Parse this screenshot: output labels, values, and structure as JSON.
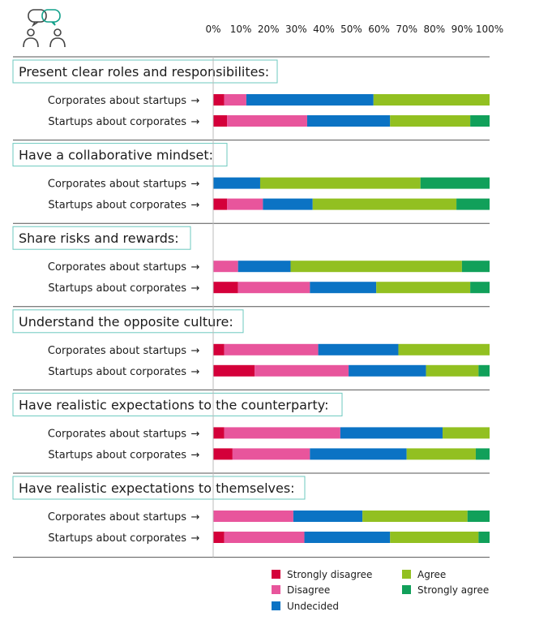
{
  "chart_data": {
    "type": "bar",
    "orientation": "horizontal",
    "stacked": true,
    "xlim": [
      0,
      100
    ],
    "x_ticks": [
      "0%",
      "10%",
      "20%",
      "30%",
      "40%",
      "50%",
      "60%",
      "70%",
      "80%",
      "90%",
      "100%"
    ],
    "series": [
      {
        "name": "Strongly disagree",
        "color": "#d4003a"
      },
      {
        "name": "Disagree",
        "color": "#e8559c"
      },
      {
        "name": "Undecided",
        "color": "#0b73c4"
      },
      {
        "name": "Agree",
        "color": "#92c021"
      },
      {
        "name": "Strongly agree",
        "color": "#11a05a"
      }
    ],
    "row_arrow_colors": {
      "corporates": "#0b73c4",
      "startups": "#92c021"
    },
    "sections": [
      {
        "title": "Present clear roles and responsibilites:",
        "rows": [
          {
            "label": "Corporates about startups",
            "arrow": "→",
            "group": "corporates",
            "values": [
              4,
              8,
              46,
              42,
              0
            ]
          },
          {
            "label": "Startups about corporates",
            "arrow": "→",
            "group": "startups",
            "values": [
              5,
              29,
              30,
              29,
              7
            ]
          }
        ]
      },
      {
        "title": "Have a collaborative mindset:",
        "rows": [
          {
            "label": "Corporates about startups",
            "arrow": "→",
            "group": "corporates",
            "values": [
              0,
              0,
              17,
              58,
              25
            ]
          },
          {
            "label": "Startups about corporates",
            "arrow": "→",
            "group": "startups",
            "values": [
              5,
              13,
              18,
              52,
              12
            ]
          }
        ]
      },
      {
        "title": "Share risks and rewards:",
        "rows": [
          {
            "label": "Corporates about startups",
            "arrow": "→",
            "group": "corporates",
            "values": [
              0,
              9,
              19,
              62,
              10
            ]
          },
          {
            "label": "Startups about corporates",
            "arrow": "→",
            "group": "startups",
            "values": [
              9,
              26,
              24,
              34,
              7
            ]
          }
        ]
      },
      {
        "title": "Understand the opposite culture:",
        "rows": [
          {
            "label": "Corporates about startups",
            "arrow": "→",
            "group": "corporates",
            "values": [
              4,
              34,
              29,
              33,
              0
            ]
          },
          {
            "label": "Startups about corporates",
            "arrow": "→",
            "group": "startups",
            "values": [
              15,
              34,
              28,
              19,
              4
            ]
          }
        ]
      },
      {
        "title": "Have realistic expectations to the counterparty:",
        "rows": [
          {
            "label": "Corporates about startups",
            "arrow": "→",
            "group": "corporates",
            "values": [
              4,
              42,
              37,
              17,
              0
            ]
          },
          {
            "label": "Startups about corporates",
            "arrow": "→",
            "group": "startups",
            "values": [
              7,
              28,
              35,
              25,
              5
            ]
          }
        ]
      },
      {
        "title": "Have realistic expectations to themselves:",
        "rows": [
          {
            "label": "Corporates about startups",
            "arrow": "→",
            "group": "corporates",
            "values": [
              0,
              29,
              25,
              38,
              8
            ]
          },
          {
            "label": "Startups about corporates",
            "arrow": "→",
            "group": "startups",
            "values": [
              4,
              29,
              31,
              32,
              4
            ]
          }
        ]
      }
    ]
  }
}
